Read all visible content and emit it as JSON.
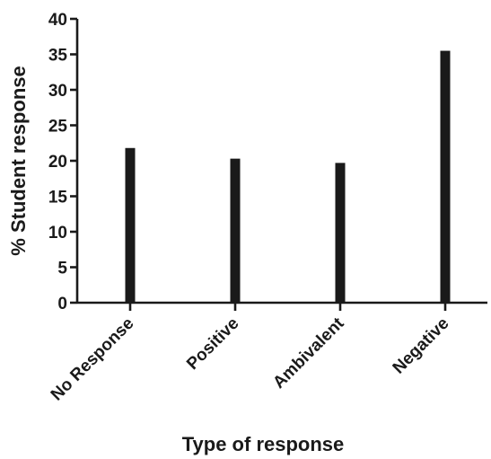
{
  "chart_data": {
    "type": "bar",
    "title": "",
    "xlabel": "Type of response",
    "ylabel": "% Student response",
    "categories": [
      "No Response",
      "Positive",
      "Ambivalent",
      "Negative"
    ],
    "values": [
      21.8,
      20.3,
      19.7,
      35.5
    ],
    "ylim": [
      0,
      40
    ],
    "yticks": [
      0,
      5,
      10,
      15,
      20,
      25,
      30,
      35,
      40
    ],
    "grid": false,
    "bar_color": "#1a1a1a"
  }
}
